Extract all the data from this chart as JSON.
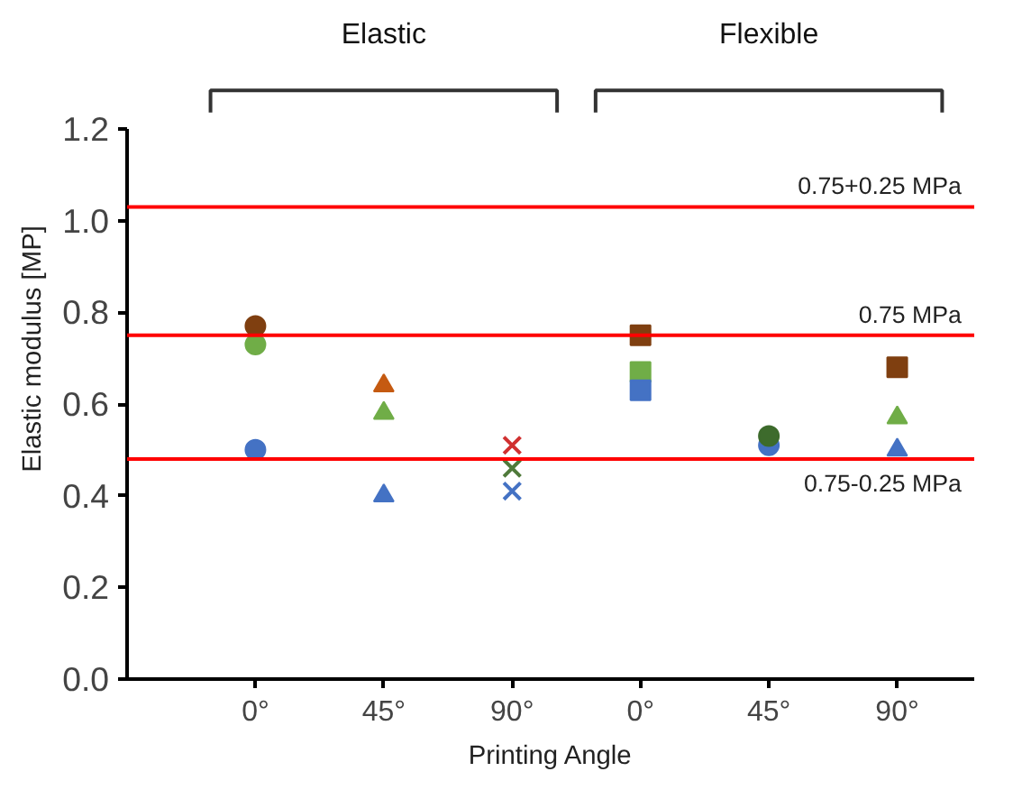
{
  "chart_data": {
    "type": "scatter",
    "xlabel": "Printing Angle",
    "ylabel": "Elastic modulus [MP]",
    "categories": [
      "0°",
      "45°",
      "90°",
      "0°",
      "45°",
      "90°"
    ],
    "ylim": [
      0,
      1.2
    ],
    "yticks": [
      {
        "value": 0,
        "label": "0.0"
      },
      0.2,
      0.4,
      0.6,
      0.8,
      {
        "value": 1,
        "label": "1.0"
      },
      1.2
    ],
    "grid": false,
    "series": [
      {
        "color": "#7f3f10",
        "marker": "circle",
        "values": [
          0.77,
          null,
          null,
          null,
          null,
          null
        ]
      },
      {
        "color": "#70ad47",
        "marker": "circle",
        "values": [
          0.73,
          null,
          null,
          null,
          null,
          null
        ]
      },
      {
        "color": "#4472c4",
        "marker": "circle",
        "values": [
          0.5,
          null,
          null,
          null,
          0.51,
          null
        ]
      },
      {
        "color": "#c55a11",
        "marker": "triangle",
        "values": [
          null,
          0.64,
          null,
          null,
          null,
          null
        ]
      },
      {
        "color": "#70ad47",
        "marker": "triangle",
        "values": [
          null,
          0.58,
          null,
          null,
          null,
          0.57
        ]
      },
      {
        "color": "#4472c4",
        "marker": "triangle",
        "values": [
          null,
          0.4,
          null,
          null,
          null,
          0.5
        ]
      },
      {
        "color": "#d03030",
        "marker": "cross",
        "values": [
          null,
          null,
          0.51,
          null,
          null,
          null
        ]
      },
      {
        "color": "#4f7a3a",
        "marker": "cross",
        "values": [
          null,
          null,
          0.46,
          null,
          null,
          null
        ]
      },
      {
        "color": "#4472c4",
        "marker": "cross",
        "values": [
          null,
          null,
          0.41,
          null,
          null,
          null
        ]
      },
      {
        "color": "#7f3f10",
        "marker": "square",
        "values": [
          null,
          null,
          null,
          0.75,
          null,
          0.68
        ]
      },
      {
        "color": "#70ad47",
        "marker": "square",
        "values": [
          null,
          null,
          null,
          0.67,
          null,
          null
        ]
      },
      {
        "color": "#4472c4",
        "marker": "square",
        "values": [
          null,
          null,
          null,
          0.63,
          null,
          null
        ]
      },
      {
        "color": "#3d6b2c",
        "marker": "circle",
        "values": [
          null,
          null,
          null,
          null,
          0.53,
          null
        ]
      }
    ],
    "ref_lines": [
      {
        "axis": "y",
        "value": 1.03,
        "label": "0.75+0.25 MPa",
        "color": "#ff0000"
      },
      {
        "axis": "y",
        "value": 0.75,
        "label": "0.75 MPa",
        "color": "#ff0000"
      },
      {
        "axis": "y",
        "value": 0.48,
        "label": "0.75-0.25 MPa",
        "color": "#ff0000"
      }
    ],
    "annotations": [
      "Elastic",
      "Flexible"
    ]
  }
}
